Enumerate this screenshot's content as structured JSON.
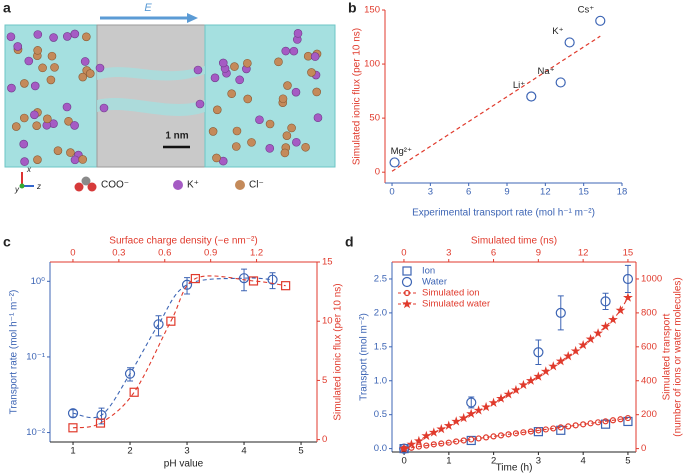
{
  "panel_a": {
    "panel": "a",
    "field_label": "E",
    "scale_bar": "1 nm",
    "axes": [
      "x",
      "y",
      "z"
    ],
    "legend": [
      "COO⁻",
      "K⁺",
      "Cl⁻"
    ]
  },
  "chart_data": [
    {
      "panel": "b",
      "type": "scatter",
      "xlabel": "Experimental transport rate (mol h⁻¹ m⁻²)",
      "ylabel": "Simulated ionic flux (per 10 ns)",
      "x": [
        0.2,
        10.9,
        13.2,
        13.9,
        16.3
      ],
      "values": [
        9,
        70,
        83,
        120,
        140
      ],
      "point_labels": [
        "Mg²⁺",
        "Li⁺",
        "Na⁺",
        "K⁺",
        "Cs⁺"
      ],
      "xlim": [
        -0.55,
        18
      ],
      "ylim": [
        -10,
        150
      ],
      "xticks": [
        0,
        3,
        6,
        9,
        12,
        15,
        18
      ],
      "yticks": [
        0,
        50,
        100,
        150
      ],
      "color": "#3c64b4",
      "fit_line": "dashed",
      "fit_color": "#e03a2c",
      "box": false,
      "axis_colors": {
        "x": "#3c64b4",
        "y": "#e03a2c"
      }
    },
    {
      "panel": "c",
      "type": "line",
      "xlabel": "pH value",
      "x2label": "Surface charge density (−e nm⁻²)",
      "ylabel": "Transport rate (mol h⁻¹ m⁻²)",
      "y2label": "Simulated ionic flux (per 10 ns)",
      "xlim": [
        0.596,
        5.28
      ],
      "xticks": [
        1,
        2,
        3,
        4,
        5
      ],
      "x2lim": [
        -0.15,
        1.595
      ],
      "x2ticks": [
        0,
        0.3,
        0.6,
        0.9,
        1.2
      ],
      "ylim": [
        0.0075,
        1.8
      ],
      "ylog": true,
      "yticks": [
        {
          "value": 0.01,
          "label": "10⁻²"
        },
        {
          "value": 0.1,
          "label": "10⁻¹"
        },
        {
          "value": 1,
          "label": "10⁰"
        }
      ],
      "y2lim": [
        -0.2,
        15
      ],
      "y2ticks": [
        0,
        5,
        10,
        15
      ],
      "box": true,
      "axis_colors": {
        "x": "#222222",
        "y": "#3c64b4",
        "x2": "#e03a2c",
        "y2": "#e03a2c"
      },
      "series": [
        {
          "color": "#3c64b4",
          "marker": "circle",
          "line": "dashed",
          "smooth": true,
          "x": [
            1,
            1.5,
            2,
            2.5,
            3,
            4,
            4.5
          ],
          "values": [
            0.018,
            0.017,
            0.06,
            0.27,
            0.9,
            1.1,
            1.05
          ],
          "errors": [
            0.002,
            0.004,
            0.012,
            0.08,
            0.22,
            0.35,
            0.25
          ]
        },
        {
          "color": "#e03a2c",
          "marker": "square",
          "line": "dashed",
          "smooth": true,
          "axis": "y2",
          "xaxis": "x2",
          "x": [
            0,
            0.18,
            0.4,
            0.64,
            0.8,
            1.18,
            1.39
          ],
          "values": [
            1.0,
            1.4,
            4.0,
            10.0,
            13.6,
            13.4,
            13.0
          ]
        }
      ]
    },
    {
      "panel": "d",
      "type": "line",
      "xlabel": "Time (h)",
      "x2label": "Simulated time (ns)",
      "ylabel": "Transport (mol m⁻²)",
      "y2label": [
        "Simulated transport",
        "(number of ions or water molecules)"
      ],
      "xlim": [
        -0.27,
        5.18
      ],
      "xticks": [
        0,
        1,
        2,
        3,
        4,
        5
      ],
      "x2lim": [
        -0.8,
        15.54
      ],
      "x2ticks": [
        0,
        3,
        6,
        9,
        12,
        15
      ],
      "ylim": [
        -0.05,
        2.75
      ],
      "yticks": [
        {
          "value": 0,
          "label": "0.0"
        },
        0.5,
        {
          "value": 1,
          "label": "1.0"
        },
        1.5,
        {
          "value": 2,
          "label": "2.0"
        },
        2.5
      ],
      "y2lim": [
        -20,
        1100
      ],
      "y2ticks": [
        0,
        200,
        400,
        600,
        800,
        1000
      ],
      "box": true,
      "legend": "upper left",
      "axis_colors": {
        "x": "#222222",
        "y": "#3c64b4",
        "x2": "#e03a2c",
        "y2": "#e03a2c"
      },
      "series": [
        {
          "name": "Ion",
          "color": "#3c64b4",
          "marker": "square",
          "x": [
            0,
            1.5,
            3,
            3.5,
            4.5,
            5
          ],
          "values": [
            0,
            0.12,
            0.25,
            0.27,
            0.36,
            0.4
          ]
        },
        {
          "name": "Water",
          "color": "#3c64b4",
          "marker": "circle",
          "x": [
            0,
            1.5,
            3,
            3.5,
            4.5,
            5
          ],
          "values": [
            0,
            0.68,
            1.42,
            2.0,
            2.17,
            2.5
          ],
          "errors": [
            0.03,
            0.08,
            0.18,
            0.25,
            0.12,
            0.2
          ]
        },
        {
          "name": "Simulated ion",
          "color": "#e03a2c",
          "marker": "small-circle",
          "line": "dashed",
          "axis": "y2",
          "xaxis": "x2",
          "x": [
            0,
            0.5,
            1,
            1.5,
            2,
            2.5,
            3,
            3.5,
            4,
            4.5,
            5,
            5.5,
            6,
            6.5,
            7,
            7.5,
            8,
            8.5,
            9,
            9.5,
            10,
            10.5,
            11,
            11.5,
            12,
            12.5,
            13,
            13.5,
            14,
            14.5,
            15
          ],
          "values": [
            0,
            5,
            12,
            18,
            25,
            30,
            35,
            42,
            48,
            54,
            60,
            66,
            72,
            78,
            84,
            90,
            96,
            101,
            107,
            113,
            119,
            125,
            131,
            137,
            143,
            149,
            155,
            161,
            167,
            173,
            180
          ]
        },
        {
          "name": "Simulated water",
          "color": "#e03a2c",
          "marker": "star",
          "line": "dashed",
          "axis": "y2",
          "xaxis": "x2",
          "x": [
            0,
            0.5,
            1,
            1.5,
            2,
            2.5,
            3,
            3.5,
            4,
            4.5,
            5,
            5.5,
            6,
            6.5,
            7,
            7.5,
            8,
            8.5,
            9,
            9.5,
            10,
            10.5,
            11,
            11.5,
            12,
            12.5,
            13,
            13.5,
            14,
            14.5,
            15
          ],
          "values": [
            0,
            25,
            45,
            75,
            95,
            115,
            135,
            160,
            180,
            205,
            225,
            245,
            270,
            295,
            320,
            345,
            375,
            400,
            425,
            455,
            485,
            515,
            545,
            575,
            610,
            645,
            680,
            720,
            760,
            815,
            890
          ]
        }
      ]
    }
  ]
}
